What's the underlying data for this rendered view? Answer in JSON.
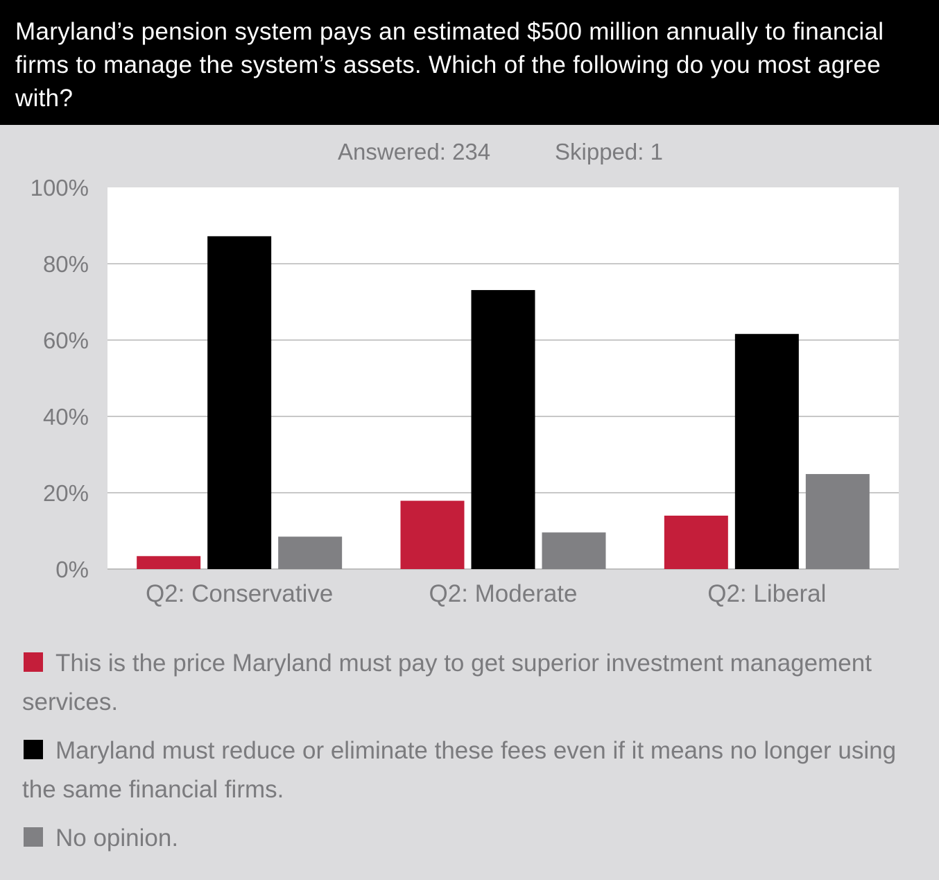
{
  "title": "Maryland’s pension system pays an estimated $500 million annually to financial firms to manage the system’s assets. Which of the following do you most agree with?",
  "meta": {
    "answered": "Answered: 234",
    "skipped": "Skipped: 1"
  },
  "colors": {
    "background": "#dcdcde",
    "plot_background": "#ffffff",
    "gridline": "#c8c8c8",
    "text": "#7b7b7e",
    "title_bar": "#000000"
  },
  "chart_data": {
    "type": "bar",
    "categories": [
      "Q2: Conservative",
      "Q2: Moderate",
      "Q2: Liberal"
    ],
    "series": [
      {
        "name": "This is the price Maryland must pay to get superior investment management services.",
        "color": "#c41e3a",
        "values": [
          3.4,
          17.9,
          14.0
        ]
      },
      {
        "name": "Maryland must reduce or eliminate these fees even if it means no longer using the same financial firms.",
        "color": "#000000",
        "values": [
          87.2,
          73.1,
          61.6
        ]
      },
      {
        "name": "No opinion.",
        "color": "#808083",
        "values": [
          8.5,
          9.6,
          24.9
        ]
      }
    ],
    "ylim": [
      0,
      100
    ],
    "yticks": [
      "0%",
      "20%",
      "40%",
      "60%",
      "80%",
      "100%"
    ],
    "ytick_values": [
      0,
      20,
      40,
      60,
      80,
      100
    ],
    "grid": true,
    "legend_position": "bottom"
  }
}
